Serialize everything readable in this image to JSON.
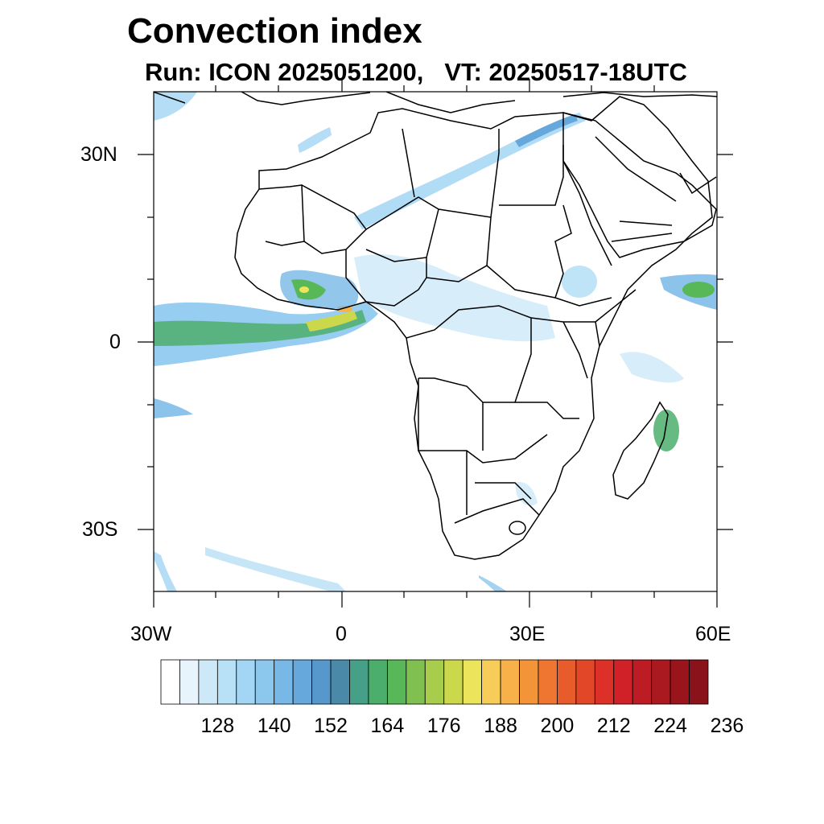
{
  "title": "Convection index",
  "subtitle": {
    "run": "Run: ICON 2025051200,",
    "vt": "VT: 20250517-18UTC"
  },
  "map": {
    "lon_range": [
      -30,
      60
    ],
    "lat_range": [
      -40,
      40
    ],
    "lon_labels": [
      "30W",
      "0",
      "30E",
      "60E"
    ],
    "lat_labels": [
      "30N",
      "0",
      "30S"
    ],
    "coastline_color": "#000000",
    "background": "#ffffff"
  },
  "colorbar": {
    "labels": [
      "128",
      "140",
      "152",
      "164",
      "176",
      "188",
      "200",
      "212",
      "224",
      "236"
    ],
    "colors": [
      "#ffffff",
      "#e8f4fc",
      "#cde9f8",
      "#b8e0f6",
      "#a2d6f4",
      "#8cc8ee",
      "#78b8e6",
      "#66a8dc",
      "#5698cc",
      "#4a8aa8",
      "#46a088",
      "#4cae6c",
      "#58b858",
      "#80c050",
      "#a8cc4c",
      "#ccd84c",
      "#ece45a",
      "#f8cc58",
      "#f8b048",
      "#f49438",
      "#ee7630",
      "#e85c2c",
      "#e24828",
      "#dc3028",
      "#d02028",
      "#be1c24",
      "#aa1820",
      "#9a141c",
      "#8a121a"
    ]
  }
}
